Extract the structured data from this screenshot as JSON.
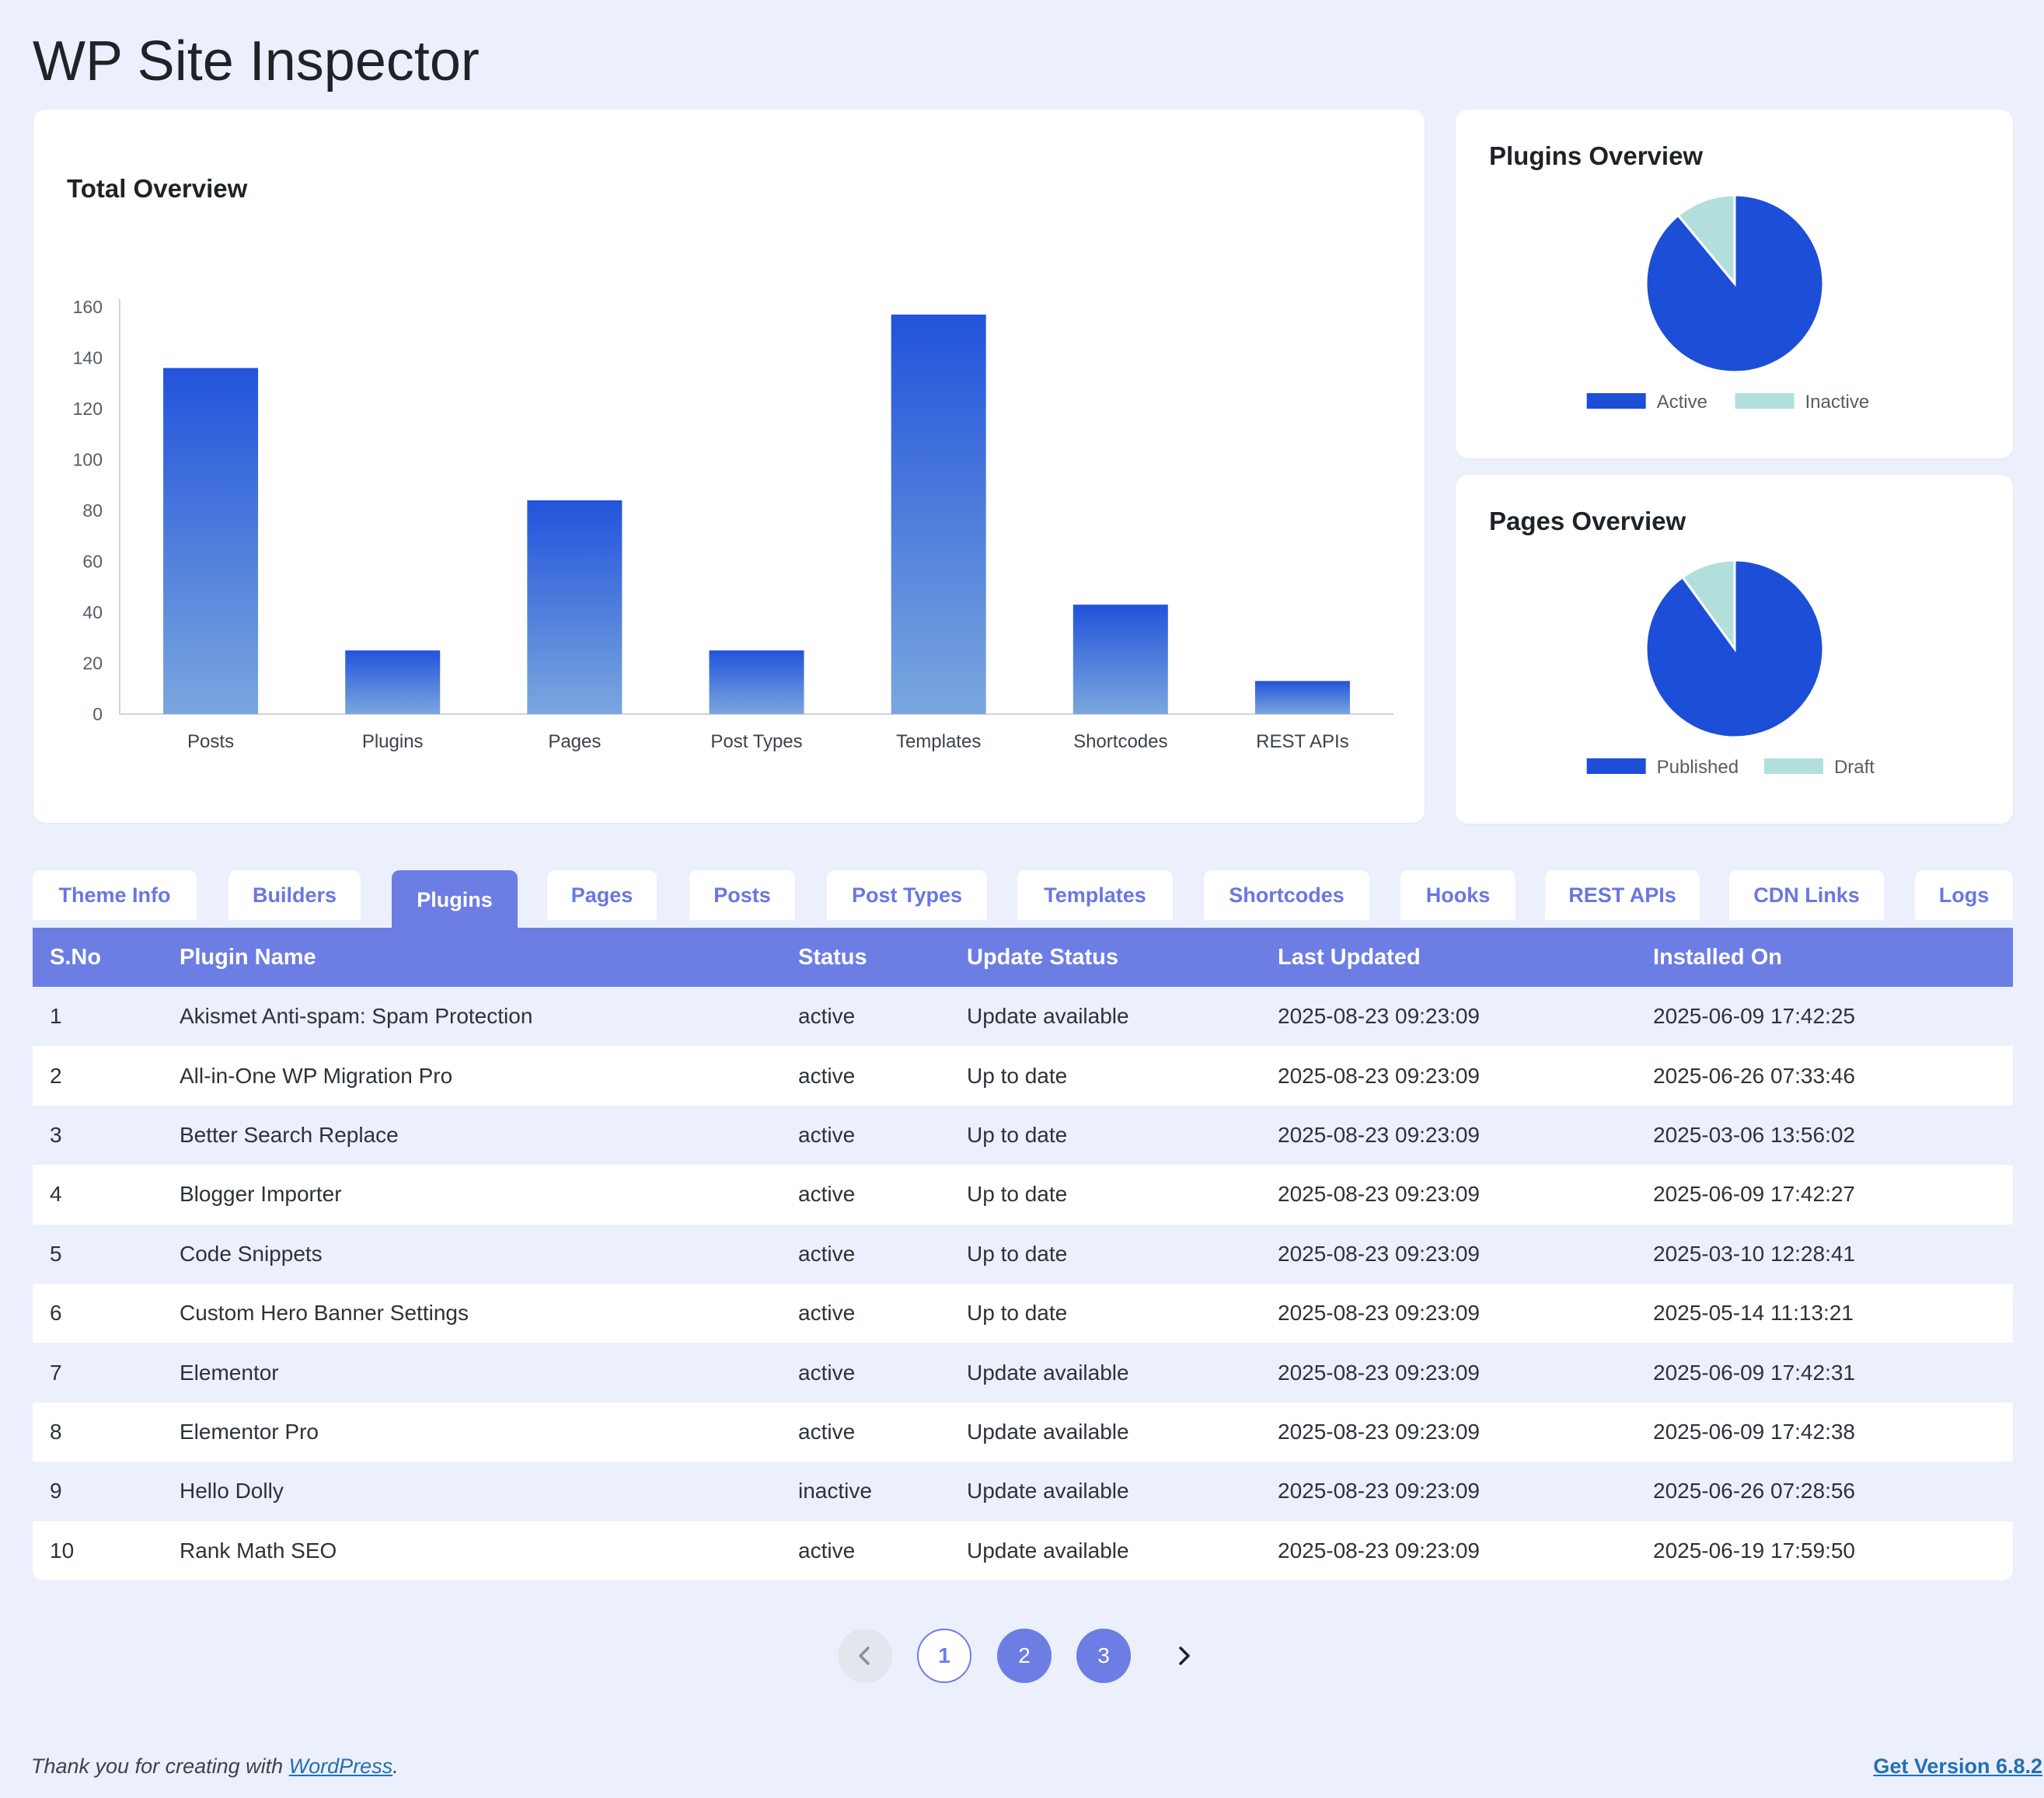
{
  "page": {
    "title": "WP Site Inspector"
  },
  "total_overview": {
    "title": "Total Overview"
  },
  "plugins_overview": {
    "title": "Plugins Overview",
    "legend": [
      "Active",
      "Inactive"
    ]
  },
  "pages_overview": {
    "title": "Pages Overview",
    "legend": [
      "Published",
      "Draft"
    ]
  },
  "colors": {
    "accent": "#6c7de3",
    "pie_primary": "#1d4ed8",
    "pie_secondary": "#b2dfdb",
    "bar_top": "#2253db",
    "bar_bottom": "#7aa7de",
    "link": "#2271b1"
  },
  "chart_data": [
    {
      "type": "bar",
      "title": "Total Overview",
      "categories": [
        "Posts",
        "Plugins",
        "Pages",
        "Post Types",
        "Templates",
        "Shortcodes",
        "REST APIs"
      ],
      "values": [
        136,
        25,
        84,
        25,
        157,
        43,
        13
      ],
      "yticks": [
        0,
        20,
        40,
        60,
        80,
        100,
        120,
        140,
        160
      ],
      "ylim": [
        0,
        160
      ],
      "grid": false
    },
    {
      "type": "pie",
      "title": "Plugins Overview",
      "labels": [
        "Active",
        "Inactive"
      ],
      "values": [
        89,
        11
      ],
      "legend": "bottom"
    },
    {
      "type": "pie",
      "title": "Pages Overview",
      "labels": [
        "Published",
        "Draft"
      ],
      "values": [
        90,
        10
      ],
      "legend": "bottom"
    }
  ],
  "tabs": [
    {
      "label": "Theme Info",
      "active": false
    },
    {
      "label": "Builders",
      "active": false
    },
    {
      "label": "Plugins",
      "active": true
    },
    {
      "label": "Pages",
      "active": false
    },
    {
      "label": "Posts",
      "active": false
    },
    {
      "label": "Post Types",
      "active": false
    },
    {
      "label": "Templates",
      "active": false
    },
    {
      "label": "Shortcodes",
      "active": false
    },
    {
      "label": "Hooks",
      "active": false
    },
    {
      "label": "REST APIs",
      "active": false
    },
    {
      "label": "CDN Links",
      "active": false
    },
    {
      "label": "Logs",
      "active": false
    }
  ],
  "table": {
    "headers": [
      "S.No",
      "Plugin Name",
      "Status",
      "Update Status",
      "Last Updated",
      "Installed On"
    ],
    "rows": [
      [
        "1",
        "Akismet Anti-spam: Spam Protection",
        "active",
        "Update available",
        "2025-08-23 09:23:09",
        "2025-06-09 17:42:25"
      ],
      [
        "2",
        "All-in-One WP Migration Pro",
        "active",
        "Up to date",
        "2025-08-23 09:23:09",
        "2025-06-26 07:33:46"
      ],
      [
        "3",
        "Better Search Replace",
        "active",
        "Up to date",
        "2025-08-23 09:23:09",
        "2025-03-06 13:56:02"
      ],
      [
        "4",
        "Blogger Importer",
        "active",
        "Up to date",
        "2025-08-23 09:23:09",
        "2025-06-09 17:42:27"
      ],
      [
        "5",
        "Code Snippets",
        "active",
        "Up to date",
        "2025-08-23 09:23:09",
        "2025-03-10 12:28:41"
      ],
      [
        "6",
        "Custom Hero Banner Settings",
        "active",
        "Up to date",
        "2025-08-23 09:23:09",
        "2025-05-14 11:13:21"
      ],
      [
        "7",
        "Elementor",
        "active",
        "Update available",
        "2025-08-23 09:23:09",
        "2025-06-09 17:42:31"
      ],
      [
        "8",
        "Elementor Pro",
        "active",
        "Update available",
        "2025-08-23 09:23:09",
        "2025-06-09 17:42:38"
      ],
      [
        "9",
        "Hello Dolly",
        "inactive",
        "Update available",
        "2025-08-23 09:23:09",
        "2025-06-26 07:28:56"
      ],
      [
        "10",
        "Rank Math SEO",
        "active",
        "Update available",
        "2025-08-23 09:23:09",
        "2025-06-19 17:59:50"
      ]
    ]
  },
  "pagination": {
    "prev_icon": "chevron-left-icon",
    "pages": [
      "1",
      "2",
      "3"
    ],
    "current": "1",
    "next_icon": "chevron-right-icon"
  },
  "footer": {
    "thanks_prefix": "Thank you for creating with ",
    "wordpress_link": "WordPress",
    "thanks_suffix": ".",
    "version_link": "Get Version 6.8.2"
  }
}
